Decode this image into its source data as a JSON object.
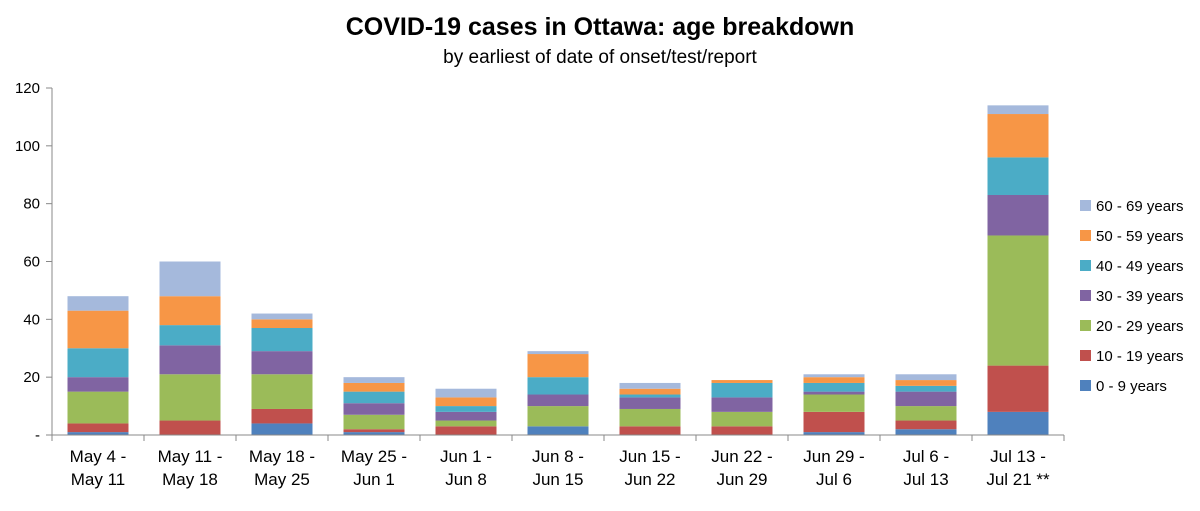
{
  "chart_data": {
    "type": "bar",
    "stacked": true,
    "title": "COVID-19 cases in Ottawa: age breakdown",
    "subtitle": "by earliest of date of onset/test/report",
    "xlabel": "",
    "ylabel": "",
    "ylim": [
      0,
      120
    ],
    "yticks": [
      {
        "value": 0,
        "label": "-"
      },
      {
        "value": 20,
        "label": "20"
      },
      {
        "value": 40,
        "label": "40"
      },
      {
        "value": 60,
        "label": "60"
      },
      {
        "value": 80,
        "label": "80"
      },
      {
        "value": 100,
        "label": "100"
      },
      {
        "value": 120,
        "label": "120"
      }
    ],
    "grid": false,
    "legend_position": "right",
    "categories": [
      [
        "May 4 -",
        "May 11"
      ],
      [
        "May 11 -",
        "May 18"
      ],
      [
        "May 18 -",
        "May 25"
      ],
      [
        "May 25 -",
        "Jun 1"
      ],
      [
        "Jun 1 -",
        "Jun 8"
      ],
      [
        "Jun 8 -",
        "Jun 15"
      ],
      [
        "Jun 15 -",
        "Jun 22"
      ],
      [
        "Jun 22 -",
        "Jun 29"
      ],
      [
        "Jun 29 -",
        "Jul 6"
      ],
      [
        "Jul 6 -",
        "Jul 13"
      ],
      [
        "Jul 13 -",
        "Jul 21 **"
      ]
    ],
    "series": [
      {
        "name": "0 - 9 years",
        "color": "#4F81BD",
        "values": [
          1,
          0,
          4,
          1,
          0,
          3,
          0,
          0,
          1,
          2,
          8
        ]
      },
      {
        "name": "10 - 19 years",
        "color": "#C0504D",
        "values": [
          3,
          5,
          5,
          1,
          3,
          0,
          3,
          3,
          7,
          3,
          16
        ]
      },
      {
        "name": "20 - 29 years",
        "color": "#9BBB59",
        "values": [
          11,
          16,
          12,
          5,
          2,
          7,
          6,
          5,
          6,
          5,
          45
        ]
      },
      {
        "name": "30 - 39 years",
        "color": "#8064A2",
        "values": [
          5,
          10,
          8,
          4,
          3,
          4,
          4,
          5,
          1,
          5,
          14
        ]
      },
      {
        "name": "40 - 49 years",
        "color": "#4BACC6",
        "values": [
          10,
          7,
          8,
          4,
          2,
          6,
          1,
          5,
          3,
          2,
          13
        ]
      },
      {
        "name": "50 - 59 years",
        "color": "#F79646",
        "values": [
          13,
          10,
          3,
          3,
          3,
          8,
          2,
          1,
          2,
          2,
          15
        ]
      },
      {
        "name": "60 - 69 years",
        "color": "#A5B9DC",
        "values": [
          5,
          12,
          2,
          2,
          3,
          1,
          2,
          0,
          1,
          2,
          3
        ]
      }
    ]
  }
}
